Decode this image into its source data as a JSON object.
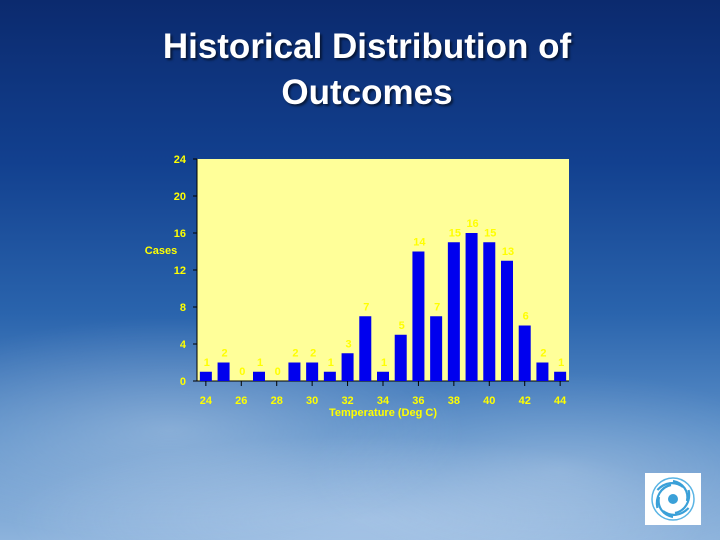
{
  "slide": {
    "title_line1": "Historical Distribution of",
    "title_line2": "Outcomes"
  },
  "colors": {
    "plot_background": "#ffff99",
    "bar": "#0000ee",
    "text": "#ffff00"
  },
  "logo": {
    "icon": "spiral-logo-icon"
  },
  "chart_data": {
    "type": "bar",
    "title": "",
    "xlabel": "Temperature (Deg C)",
    "ylabel": "Cases",
    "x": [
      24,
      25,
      26,
      27,
      28,
      29,
      30,
      31,
      32,
      33,
      34,
      35,
      36,
      37,
      38,
      39,
      40,
      41,
      42,
      43,
      44
    ],
    "values": [
      1,
      2,
      0,
      1,
      0,
      2,
      2,
      1,
      3,
      7,
      1,
      5,
      14,
      7,
      15,
      16,
      15,
      13,
      6,
      2,
      1
    ],
    "xticks": [
      "24",
      "26",
      "28",
      "30",
      "32",
      "34",
      "36",
      "38",
      "40",
      "42",
      "44"
    ],
    "yticks": [
      "0",
      "4",
      "8",
      "12",
      "16",
      "20",
      "24"
    ],
    "ylim": [
      0,
      24
    ],
    "grid": false,
    "legend": "none"
  }
}
